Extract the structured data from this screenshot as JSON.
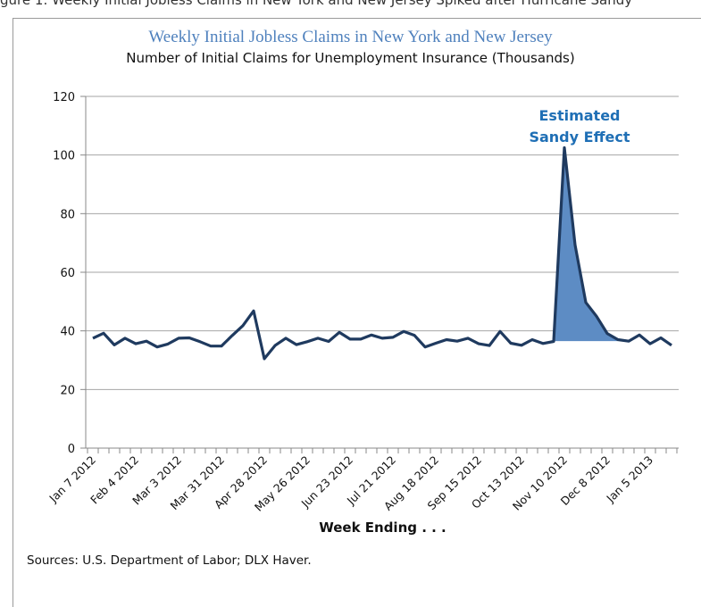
{
  "figure_caption_partial": "gure 1: Weekly Initial Jobless Claims in New York and New Jersey Spiked after Hurricane Sandy",
  "source_note": "Sources: U.S. Department of Labor; DLX Haver.",
  "colors": {
    "line": "#1f3a5f",
    "fill": "#5d8cc4",
    "annotation": "#1f6fb5",
    "title": "#4f81bd",
    "grid": "#a6a6a6"
  },
  "chart_data": {
    "type": "line",
    "title": "Weekly Initial Jobless Claims in New York and New Jersey",
    "subtitle": "Number of Initial Claims for Unemployment Insurance (Thousands)",
    "xlabel": "Week Ending . . .",
    "ylabel": "",
    "ylim": [
      0,
      120
    ],
    "yticks": [
      0,
      20,
      40,
      60,
      80,
      100,
      120
    ],
    "grid": true,
    "legend": "none",
    "annotation": {
      "text_line1": "Estimated",
      "text_line2": "Sandy Effect"
    },
    "x_tick_labels": [
      "Jan 7 2012",
      "Feb 4 2012",
      "Mar 3 2012",
      "Mar 31 2012",
      "Apr 28 2012",
      "May 26 2012",
      "Jun 23 2012",
      "Jul 21 2012",
      "Aug 18 2012",
      "Sep 15 2012",
      "Oct 13 2012",
      "Nov 10 2012",
      "Dec 8 2012",
      "Jan 5 2013"
    ],
    "label_every": 4,
    "series": [
      {
        "values": [
          37.5,
          39.2,
          35.2,
          37.5,
          35.6,
          36.5,
          34.5,
          35.5,
          37.5,
          37.6,
          36.3,
          34.8,
          34.8,
          38.4,
          41.8,
          46.8,
          30.5,
          35.0,
          37.5,
          35.3,
          36.3,
          37.5,
          36.4,
          39.5,
          37.2,
          37.2,
          38.6,
          37.5,
          37.8,
          39.8,
          38.5,
          34.5,
          35.8,
          37.0,
          36.5,
          37.5,
          35.6,
          35.0,
          39.8,
          35.8,
          35.1,
          37.0,
          35.7,
          36.4,
          102.5,
          69.3,
          49.7,
          45.0,
          39.1,
          37.0,
          36.5,
          38.6,
          35.6,
          37.6,
          35.1
        ]
      }
    ],
    "shaded_region": {
      "from_index": 43,
      "to_index": 49,
      "baseline": 36.5
    }
  }
}
